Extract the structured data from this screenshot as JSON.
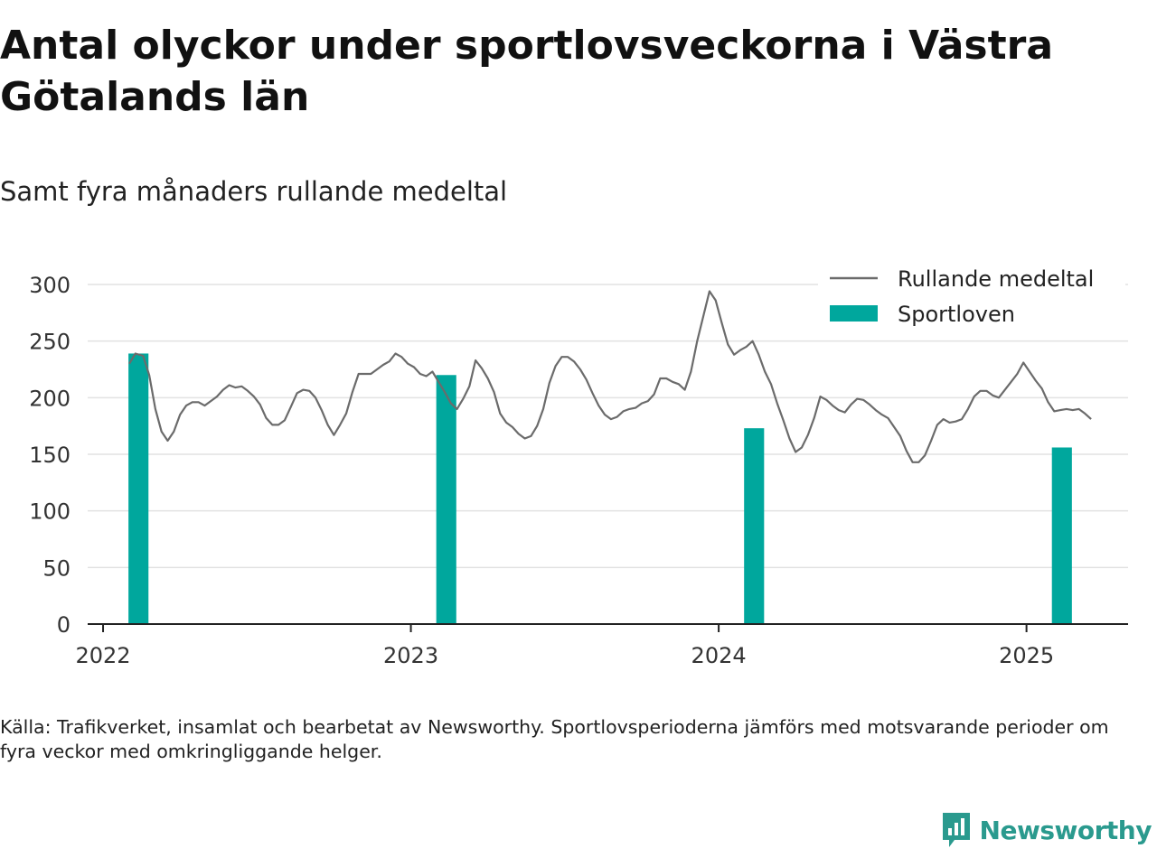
{
  "title": "Antal olyckor under sportlovsveckorna i Västra Götalands län",
  "subtitle": "Samt fyra månaders rullande medeltal",
  "source": "Källa: Trafikverket, insamlat och bearbetat av Newsworthy. Sportlovsperioderna jämförs med motsvarande perioder om fyra veckor med omkringliggande helger.",
  "brand": {
    "name": "Newsworthy",
    "color": "#2a9a8e",
    "icon": "newsworthy-logo-icon"
  },
  "colors": {
    "line": "#6b6b6b",
    "bar": "#00a79d",
    "grid": "#e2e2e2",
    "axis": "#222222"
  },
  "chart_data": {
    "type": "bar+line",
    "ylim": [
      0,
      300
    ],
    "yticks": [
      0,
      50,
      100,
      150,
      200,
      250,
      300
    ],
    "xlim": [
      2021.95,
      2025.33
    ],
    "xticks": [
      2022,
      2023,
      2024,
      2025
    ],
    "grid": true,
    "legend_position": "top-right",
    "legend": [
      {
        "label": "Rullande medeltal",
        "kind": "line"
      },
      {
        "label": "Sportloven",
        "kind": "bar"
      }
    ],
    "bars": {
      "name": "Sportloven",
      "x": [
        2022.115,
        2023.115,
        2024.115,
        2025.115
      ],
      "values": [
        239,
        220,
        173,
        156
      ],
      "width_years": 0.065
    },
    "line": {
      "name": "Rullande medeltal",
      "points": [
        [
          2022.085,
          230
        ],
        [
          2022.105,
          239
        ],
        [
          2022.13,
          237
        ],
        [
          2022.15,
          220
        ],
        [
          2022.17,
          190
        ],
        [
          2022.19,
          170
        ],
        [
          2022.21,
          162
        ],
        [
          2022.23,
          170
        ],
        [
          2022.25,
          185
        ],
        [
          2022.27,
          193
        ],
        [
          2022.29,
          196
        ],
        [
          2022.31,
          196
        ],
        [
          2022.33,
          193
        ],
        [
          2022.35,
          197
        ],
        [
          2022.37,
          201
        ],
        [
          2022.39,
          207
        ],
        [
          2022.41,
          211
        ],
        [
          2022.43,
          209
        ],
        [
          2022.45,
          210
        ],
        [
          2022.47,
          206
        ],
        [
          2022.49,
          201
        ],
        [
          2022.51,
          194
        ],
        [
          2022.53,
          182
        ],
        [
          2022.55,
          176
        ],
        [
          2022.57,
          176
        ],
        [
          2022.59,
          180
        ],
        [
          2022.61,
          192
        ],
        [
          2022.63,
          204
        ],
        [
          2022.65,
          207
        ],
        [
          2022.67,
          206
        ],
        [
          2022.69,
          200
        ],
        [
          2022.71,
          189
        ],
        [
          2022.73,
          176
        ],
        [
          2022.75,
          167
        ],
        [
          2022.77,
          176
        ],
        [
          2022.79,
          186
        ],
        [
          2022.81,
          205
        ],
        [
          2022.83,
          221
        ],
        [
          2022.85,
          221
        ],
        [
          2022.87,
          221
        ],
        [
          2022.89,
          225
        ],
        [
          2022.91,
          229
        ],
        [
          2022.93,
          232
        ],
        [
          2022.95,
          239
        ],
        [
          2022.97,
          236
        ],
        [
          2022.99,
          230
        ],
        [
          2023.01,
          227
        ],
        [
          2023.03,
          221
        ],
        [
          2023.05,
          219
        ],
        [
          2023.07,
          223
        ],
        [
          2023.09,
          214
        ],
        [
          2023.11,
          205
        ],
        [
          2023.13,
          195
        ],
        [
          2023.15,
          190
        ],
        [
          2023.17,
          199
        ],
        [
          2023.19,
          210
        ],
        [
          2023.21,
          233
        ],
        [
          2023.23,
          226
        ],
        [
          2023.25,
          217
        ],
        [
          2023.27,
          205
        ],
        [
          2023.29,
          186
        ],
        [
          2023.31,
          178
        ],
        [
          2023.33,
          174
        ],
        [
          2023.35,
          168
        ],
        [
          2023.37,
          164
        ],
        [
          2023.39,
          166
        ],
        [
          2023.41,
          175
        ],
        [
          2023.43,
          190
        ],
        [
          2023.45,
          213
        ],
        [
          2023.47,
          228
        ],
        [
          2023.49,
          236
        ],
        [
          2023.51,
          236
        ],
        [
          2023.53,
          232
        ],
        [
          2023.55,
          225
        ],
        [
          2023.57,
          216
        ],
        [
          2023.59,
          204
        ],
        [
          2023.61,
          193
        ],
        [
          2023.63,
          185
        ],
        [
          2023.65,
          181
        ],
        [
          2023.67,
          183
        ],
        [
          2023.69,
          188
        ],
        [
          2023.71,
          190
        ],
        [
          2023.73,
          191
        ],
        [
          2023.75,
          195
        ],
        [
          2023.77,
          197
        ],
        [
          2023.79,
          203
        ],
        [
          2023.81,
          217
        ],
        [
          2023.83,
          217
        ],
        [
          2023.85,
          214
        ],
        [
          2023.87,
          212
        ],
        [
          2023.89,
          207
        ],
        [
          2023.91,
          223
        ],
        [
          2023.93,
          250
        ],
        [
          2023.95,
          272
        ],
        [
          2023.97,
          294
        ],
        [
          2023.99,
          286
        ],
        [
          2024.01,
          266
        ],
        [
          2024.03,
          247
        ],
        [
          2024.05,
          238
        ],
        [
          2024.07,
          242
        ],
        [
          2024.09,
          245
        ],
        [
          2024.11,
          250
        ],
        [
          2024.13,
          238
        ],
        [
          2024.15,
          223
        ],
        [
          2024.17,
          212
        ],
        [
          2024.19,
          195
        ],
        [
          2024.21,
          180
        ],
        [
          2024.23,
          164
        ],
        [
          2024.25,
          152
        ],
        [
          2024.27,
          156
        ],
        [
          2024.29,
          167
        ],
        [
          2024.31,
          182
        ],
        [
          2024.33,
          201
        ],
        [
          2024.35,
          198
        ],
        [
          2024.37,
          193
        ],
        [
          2024.39,
          189
        ],
        [
          2024.41,
          187
        ],
        [
          2024.43,
          194
        ],
        [
          2024.45,
          199
        ],
        [
          2024.47,
          198
        ],
        [
          2024.49,
          194
        ],
        [
          2024.51,
          189
        ],
        [
          2024.53,
          185
        ],
        [
          2024.55,
          182
        ],
        [
          2024.57,
          174
        ],
        [
          2024.59,
          166
        ],
        [
          2024.61,
          153
        ],
        [
          2024.63,
          143
        ],
        [
          2024.65,
          143
        ],
        [
          2024.67,
          149
        ],
        [
          2024.69,
          162
        ],
        [
          2024.71,
          176
        ],
        [
          2024.73,
          181
        ],
        [
          2024.75,
          178
        ],
        [
          2024.77,
          179
        ],
        [
          2024.79,
          181
        ],
        [
          2024.81,
          190
        ],
        [
          2024.83,
          201
        ],
        [
          2024.85,
          206
        ],
        [
          2024.87,
          206
        ],
        [
          2024.89,
          202
        ],
        [
          2024.91,
          200
        ],
        [
          2024.93,
          207
        ],
        [
          2024.95,
          214
        ],
        [
          2024.97,
          221
        ],
        [
          2024.99,
          231
        ],
        [
          2025.01,
          223
        ],
        [
          2025.03,
          215
        ],
        [
          2025.05,
          208
        ],
        [
          2025.07,
          196
        ],
        [
          2025.09,
          188
        ],
        [
          2025.11,
          189
        ],
        [
          2025.13,
          190
        ],
        [
          2025.15,
          189
        ],
        [
          2025.17,
          190
        ],
        [
          2025.19,
          186
        ],
        [
          2025.21,
          181
        ]
      ]
    }
  }
}
